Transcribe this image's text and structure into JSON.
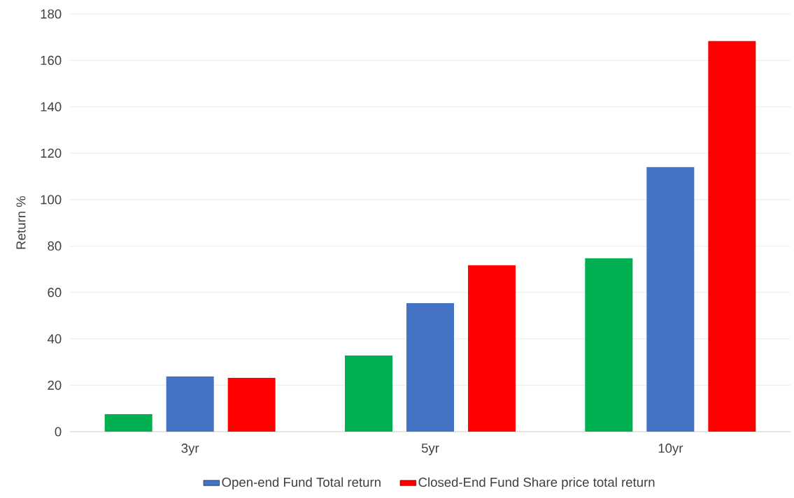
{
  "chart_data": {
    "type": "bar",
    "ylabel": "Return %",
    "categories": [
      "3yr",
      "5yr",
      "10yr"
    ],
    "series": [
      {
        "color": "#00b050",
        "values": [
          7.5,
          32.8,
          74.7
        ]
      },
      {
        "name": "Open-end Fund Total return",
        "color": "#4472c4",
        "values": [
          23.8,
          55.4,
          114
        ]
      },
      {
        "name": "Closed-End Fund Share price total return",
        "color": "#ff0000",
        "values": [
          23.2,
          71.7,
          168.3
        ]
      }
    ],
    "ylim": [
      0,
      180
    ],
    "yticks": [
      0,
      20,
      40,
      60,
      80,
      100,
      120,
      140,
      160,
      180
    ],
    "grid": "y",
    "legend": "bottom"
  }
}
